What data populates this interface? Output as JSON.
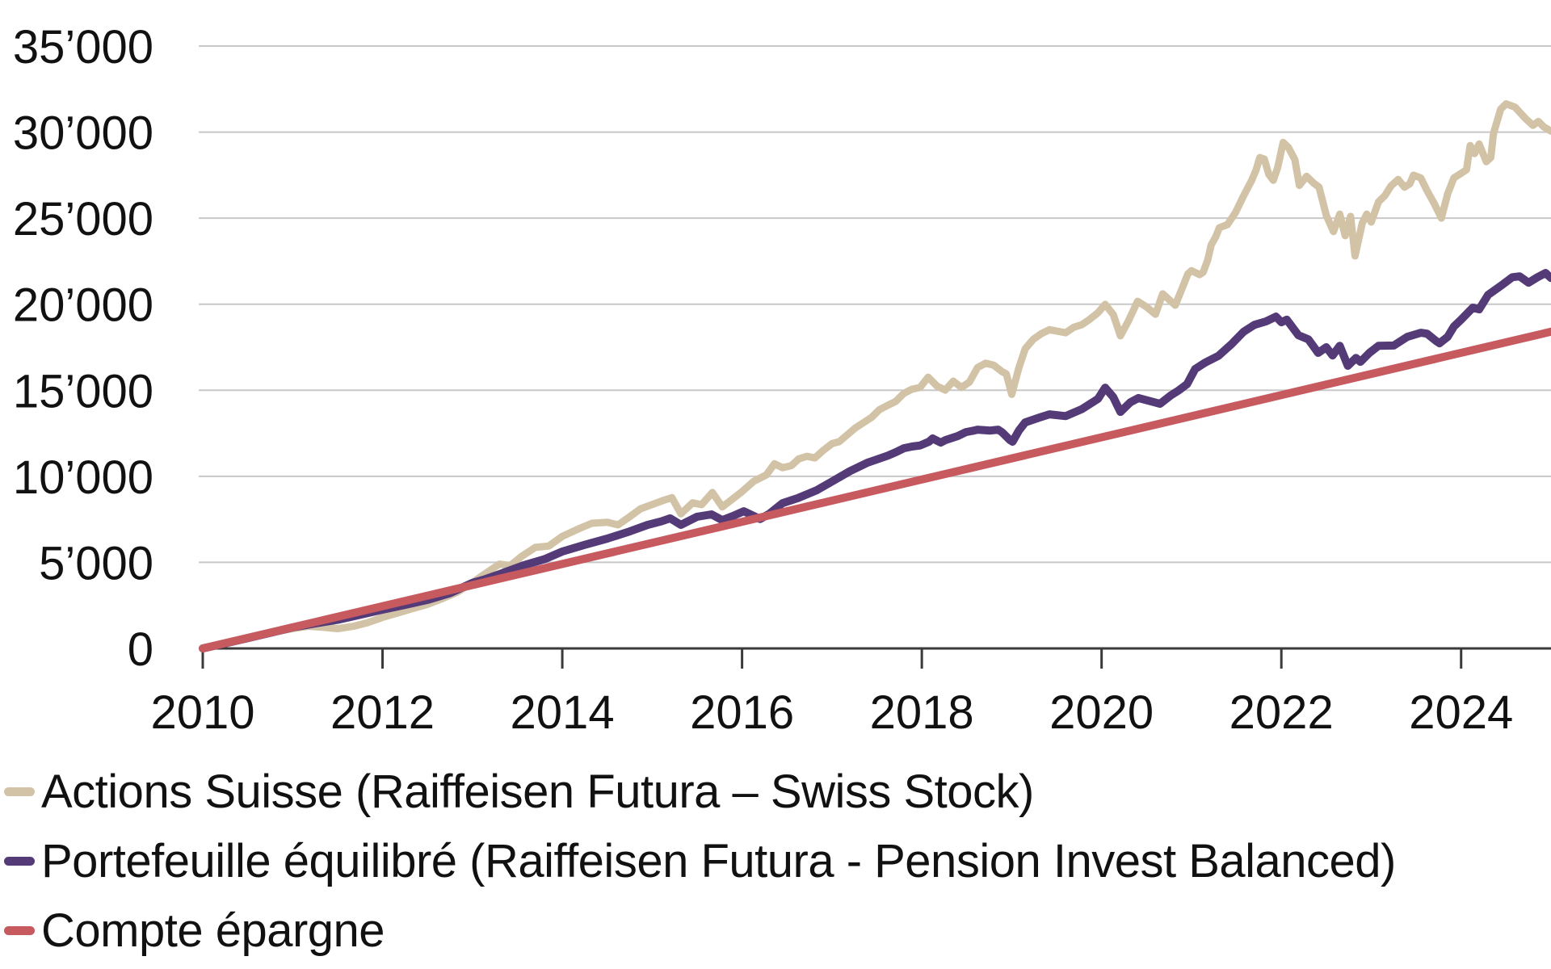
{
  "chart_data": {
    "type": "line",
    "title": "",
    "xlabel": "",
    "ylabel": "",
    "grid": true,
    "legend_position": "bottom-left",
    "x_axis": {
      "range": [
        2010,
        2025
      ],
      "ticks": [
        {
          "value": 2010,
          "label": "2010"
        },
        {
          "value": 2012,
          "label": "2012"
        },
        {
          "value": 2014,
          "label": "2014"
        },
        {
          "value": 2016,
          "label": "2016"
        },
        {
          "value": 2018,
          "label": "2018"
        },
        {
          "value": 2020,
          "label": "2020"
        },
        {
          "value": 2022,
          "label": "2022"
        },
        {
          "value": 2024,
          "label": "2024"
        }
      ]
    },
    "y_axis": {
      "range": [
        0,
        35000
      ],
      "ticks": [
        {
          "value": 0,
          "label": "0"
        },
        {
          "value": 5000,
          "label": "5’000"
        },
        {
          "value": 10000,
          "label": "10’000"
        },
        {
          "value": 15000,
          "label": "15’000"
        },
        {
          "value": 20000,
          "label": "20’000"
        },
        {
          "value": 25000,
          "label": "25’000"
        },
        {
          "value": 30000,
          "label": "30’000"
        },
        {
          "value": 35000,
          "label": "35’000"
        }
      ]
    },
    "series": [
      {
        "name": "Actions Suisse (Raiffeisen Futura – Swiss Stock)",
        "color": "#D2C3A6",
        "width": 9,
        "points": [
          [
            2010.0,
            0
          ],
          [
            2010.17,
            200
          ],
          [
            2010.33,
            430
          ],
          [
            2010.5,
            570
          ],
          [
            2010.67,
            800
          ],
          [
            2010.83,
            990
          ],
          [
            2011.0,
            1150
          ],
          [
            2011.17,
            1290
          ],
          [
            2011.33,
            1230
          ],
          [
            2011.5,
            1150
          ],
          [
            2011.67,
            1280
          ],
          [
            2011.83,
            1490
          ],
          [
            2012.0,
            1800
          ],
          [
            2012.17,
            2060
          ],
          [
            2012.33,
            2310
          ],
          [
            2012.5,
            2560
          ],
          [
            2012.67,
            2910
          ],
          [
            2012.83,
            3260
          ],
          [
            2013.0,
            3820
          ],
          [
            2013.13,
            4300
          ],
          [
            2013.3,
            4900
          ],
          [
            2013.42,
            4810
          ],
          [
            2013.55,
            5360
          ],
          [
            2013.7,
            5870
          ],
          [
            2013.85,
            5950
          ],
          [
            2014.0,
            6510
          ],
          [
            2014.2,
            6990
          ],
          [
            2014.33,
            7270
          ],
          [
            2014.5,
            7330
          ],
          [
            2014.62,
            7180
          ],
          [
            2014.75,
            7650
          ],
          [
            2014.87,
            8110
          ],
          [
            2015.0,
            8360
          ],
          [
            2015.13,
            8610
          ],
          [
            2015.22,
            8760
          ],
          [
            2015.32,
            7820
          ],
          [
            2015.45,
            8460
          ],
          [
            2015.55,
            8350
          ],
          [
            2015.67,
            9060
          ],
          [
            2015.78,
            8220
          ],
          [
            2015.9,
            8710
          ],
          [
            2016.0,
            9110
          ],
          [
            2016.13,
            9710
          ],
          [
            2016.27,
            10080
          ],
          [
            2016.36,
            10730
          ],
          [
            2016.45,
            10500
          ],
          [
            2016.55,
            10620
          ],
          [
            2016.63,
            11010
          ],
          [
            2016.72,
            11160
          ],
          [
            2016.81,
            11070
          ],
          [
            2016.9,
            11490
          ],
          [
            2017.0,
            11900
          ],
          [
            2017.08,
            12010
          ],
          [
            2017.26,
            12810
          ],
          [
            2017.44,
            13420
          ],
          [
            2017.53,
            13880
          ],
          [
            2017.62,
            14120
          ],
          [
            2017.71,
            14350
          ],
          [
            2017.8,
            14820
          ],
          [
            2017.89,
            15060
          ],
          [
            2017.98,
            15160
          ],
          [
            2018.07,
            15760
          ],
          [
            2018.17,
            15240
          ],
          [
            2018.26,
            15010
          ],
          [
            2018.35,
            15530
          ],
          [
            2018.44,
            15160
          ],
          [
            2018.53,
            15480
          ],
          [
            2018.62,
            16320
          ],
          [
            2018.71,
            16570
          ],
          [
            2018.8,
            16460
          ],
          [
            2018.89,
            16090
          ],
          [
            2018.94,
            15950
          ],
          [
            2019.0,
            14760
          ],
          [
            2019.08,
            16310
          ],
          [
            2019.15,
            17410
          ],
          [
            2019.24,
            17960
          ],
          [
            2019.33,
            18290
          ],
          [
            2019.42,
            18520
          ],
          [
            2019.51,
            18430
          ],
          [
            2019.6,
            18340
          ],
          [
            2019.69,
            18660
          ],
          [
            2019.78,
            18810
          ],
          [
            2019.87,
            19130
          ],
          [
            2019.96,
            19510
          ],
          [
            2020.04,
            19990
          ],
          [
            2020.13,
            19400
          ],
          [
            2020.21,
            18160
          ],
          [
            2020.3,
            19040
          ],
          [
            2020.4,
            20170
          ],
          [
            2020.5,
            19840
          ],
          [
            2020.6,
            19410
          ],
          [
            2020.68,
            20600
          ],
          [
            2020.82,
            19940
          ],
          [
            2020.91,
            21100
          ],
          [
            2020.96,
            21760
          ],
          [
            2021.0,
            21950
          ],
          [
            2021.09,
            21720
          ],
          [
            2021.13,
            21860
          ],
          [
            2021.18,
            22560
          ],
          [
            2021.22,
            23450
          ],
          [
            2021.27,
            23920
          ],
          [
            2021.31,
            24440
          ],
          [
            2021.4,
            24620
          ],
          [
            2021.49,
            25330
          ],
          [
            2021.58,
            26300
          ],
          [
            2021.67,
            27200
          ],
          [
            2021.72,
            27810
          ],
          [
            2021.76,
            28520
          ],
          [
            2021.81,
            28430
          ],
          [
            2021.86,
            27550
          ],
          [
            2021.91,
            27200
          ],
          [
            2021.96,
            27950
          ],
          [
            2022.02,
            29400
          ],
          [
            2022.08,
            29100
          ],
          [
            2022.15,
            28400
          ],
          [
            2022.2,
            26900
          ],
          [
            2022.28,
            27430
          ],
          [
            2022.36,
            27030
          ],
          [
            2022.42,
            26800
          ],
          [
            2022.5,
            25160
          ],
          [
            2022.58,
            24220
          ],
          [
            2022.65,
            25230
          ],
          [
            2022.71,
            23980
          ],
          [
            2022.77,
            25100
          ],
          [
            2022.82,
            22800
          ],
          [
            2022.9,
            24700
          ],
          [
            2022.95,
            25230
          ],
          [
            2023.0,
            24770
          ],
          [
            2023.08,
            25940
          ],
          [
            2023.15,
            26300
          ],
          [
            2023.22,
            26870
          ],
          [
            2023.3,
            27250
          ],
          [
            2023.37,
            26800
          ],
          [
            2023.43,
            27000
          ],
          [
            2023.47,
            27500
          ],
          [
            2023.55,
            27340
          ],
          [
            2023.62,
            26600
          ],
          [
            2023.7,
            25850
          ],
          [
            2023.78,
            25000
          ],
          [
            2023.85,
            26400
          ],
          [
            2023.92,
            27340
          ],
          [
            2024.0,
            27600
          ],
          [
            2024.06,
            27810
          ],
          [
            2024.1,
            29220
          ],
          [
            2024.15,
            28750
          ],
          [
            2024.2,
            29310
          ],
          [
            2024.28,
            28280
          ],
          [
            2024.33,
            28520
          ],
          [
            2024.36,
            29920
          ],
          [
            2024.44,
            31330
          ],
          [
            2024.5,
            31640
          ],
          [
            2024.6,
            31450
          ],
          [
            2024.72,
            30770
          ],
          [
            2024.8,
            30390
          ],
          [
            2024.86,
            30620
          ],
          [
            2024.92,
            30300
          ],
          [
            2025.0,
            30060
          ]
        ]
      },
      {
        "name": "Portefeuille équilibré (Raiffeisen Futura - Pension Invest Balanced)",
        "color": "#553A78",
        "width": 10,
        "points": [
          [
            2010.0,
            0
          ],
          [
            2010.25,
            290
          ],
          [
            2010.5,
            600
          ],
          [
            2010.75,
            900
          ],
          [
            2011.0,
            1220
          ],
          [
            2011.25,
            1450
          ],
          [
            2011.5,
            1660
          ],
          [
            2011.75,
            1950
          ],
          [
            2012.0,
            2250
          ],
          [
            2012.25,
            2530
          ],
          [
            2012.5,
            2820
          ],
          [
            2012.75,
            3210
          ],
          [
            2013.0,
            3810
          ],
          [
            2013.13,
            4000
          ],
          [
            2013.3,
            4310
          ],
          [
            2013.57,
            4830
          ],
          [
            2013.8,
            5180
          ],
          [
            2014.0,
            5630
          ],
          [
            2014.25,
            6020
          ],
          [
            2014.5,
            6380
          ],
          [
            2014.75,
            6800
          ],
          [
            2014.95,
            7180
          ],
          [
            2015.1,
            7380
          ],
          [
            2015.2,
            7560
          ],
          [
            2015.32,
            7180
          ],
          [
            2015.5,
            7650
          ],
          [
            2015.66,
            7790
          ],
          [
            2015.78,
            7450
          ],
          [
            2015.9,
            7700
          ],
          [
            2016.02,
            7970
          ],
          [
            2016.2,
            7520
          ],
          [
            2016.3,
            7810
          ],
          [
            2016.45,
            8440
          ],
          [
            2016.62,
            8730
          ],
          [
            2016.83,
            9190
          ],
          [
            2017.0,
            9700
          ],
          [
            2017.2,
            10300
          ],
          [
            2017.4,
            10800
          ],
          [
            2017.62,
            11200
          ],
          [
            2017.71,
            11400
          ],
          [
            2017.8,
            11630
          ],
          [
            2017.89,
            11730
          ],
          [
            2017.98,
            11790
          ],
          [
            2018.08,
            12010
          ],
          [
            2018.12,
            12200
          ],
          [
            2018.21,
            11960
          ],
          [
            2018.26,
            12100
          ],
          [
            2018.4,
            12340
          ],
          [
            2018.49,
            12570
          ],
          [
            2018.58,
            12660
          ],
          [
            2018.62,
            12710
          ],
          [
            2018.76,
            12660
          ],
          [
            2018.85,
            12710
          ],
          [
            2018.89,
            12570
          ],
          [
            2018.98,
            12110
          ],
          [
            2019.01,
            12010
          ],
          [
            2019.08,
            12660
          ],
          [
            2019.15,
            13130
          ],
          [
            2019.3,
            13400
          ],
          [
            2019.42,
            13600
          ],
          [
            2019.6,
            13500
          ],
          [
            2019.78,
            13900
          ],
          [
            2019.96,
            14500
          ],
          [
            2020.04,
            15150
          ],
          [
            2020.13,
            14600
          ],
          [
            2020.21,
            13740
          ],
          [
            2020.32,
            14300
          ],
          [
            2020.41,
            14550
          ],
          [
            2020.55,
            14350
          ],
          [
            2020.65,
            14210
          ],
          [
            2020.77,
            14700
          ],
          [
            2020.86,
            15000
          ],
          [
            2020.95,
            15350
          ],
          [
            2021.04,
            16230
          ],
          [
            2021.15,
            16600
          ],
          [
            2021.3,
            17000
          ],
          [
            2021.45,
            17700
          ],
          [
            2021.58,
            18400
          ],
          [
            2021.7,
            18800
          ],
          [
            2021.83,
            19000
          ],
          [
            2021.94,
            19280
          ],
          [
            2022.0,
            18950
          ],
          [
            2022.06,
            19100
          ],
          [
            2022.19,
            18200
          ],
          [
            2022.3,
            17960
          ],
          [
            2022.41,
            17170
          ],
          [
            2022.5,
            17500
          ],
          [
            2022.57,
            17020
          ],
          [
            2022.65,
            17580
          ],
          [
            2022.74,
            16420
          ],
          [
            2022.83,
            16880
          ],
          [
            2022.88,
            16650
          ],
          [
            2022.98,
            17170
          ],
          [
            2023.08,
            17580
          ],
          [
            2023.25,
            17600
          ],
          [
            2023.4,
            18100
          ],
          [
            2023.55,
            18340
          ],
          [
            2023.62,
            18290
          ],
          [
            2023.72,
            17870
          ],
          [
            2023.76,
            17730
          ],
          [
            2023.85,
            18100
          ],
          [
            2023.92,
            18700
          ],
          [
            2024.0,
            19100
          ],
          [
            2024.13,
            19800
          ],
          [
            2024.2,
            19700
          ],
          [
            2024.3,
            20540
          ],
          [
            2024.45,
            21100
          ],
          [
            2024.57,
            21570
          ],
          [
            2024.65,
            21620
          ],
          [
            2024.75,
            21250
          ],
          [
            2024.85,
            21570
          ],
          [
            2024.94,
            21810
          ],
          [
            2025.0,
            21520
          ]
        ]
      },
      {
        "name": "Compte épargne",
        "color": "#C65A5F",
        "width": 10,
        "points": [
          [
            2010.0,
            0
          ],
          [
            2025.0,
            18400
          ]
        ]
      }
    ]
  },
  "colors": {
    "gridline": "#C8C8C8",
    "axis": "#3A3A3A",
    "tick_label": "#111111"
  }
}
